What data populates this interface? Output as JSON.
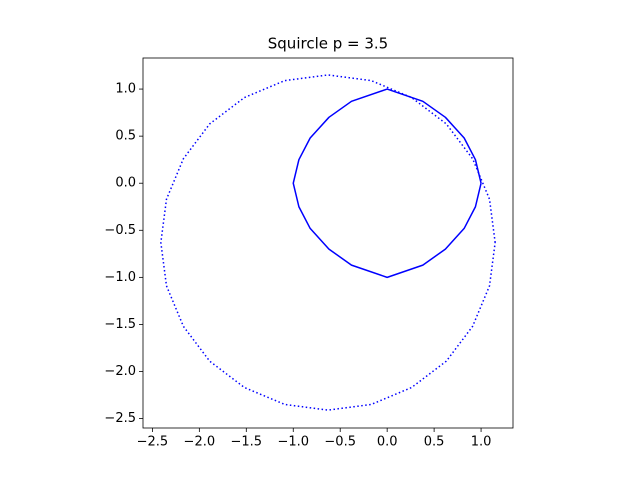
{
  "chart_data": {
    "type": "line",
    "title": "Squircle p = 3.5",
    "xlim": [
      -2.6,
      1.34
    ],
    "ylim": [
      -2.6,
      1.33
    ],
    "xticks": [
      {
        "value": -2.5,
        "label": "−2.5"
      },
      {
        "value": -2.0,
        "label": "−2.0"
      },
      {
        "value": -1.5,
        "label": "−1.5"
      },
      {
        "value": -1.0,
        "label": "−1.0"
      },
      {
        "value": -0.5,
        "label": "−0.5"
      },
      {
        "value": 0,
        "label": "0.0"
      },
      {
        "value": 0.5,
        "label": "0.5"
      },
      {
        "value": 1.0,
        "label": "1.0"
      }
    ],
    "yticks": [
      {
        "value": -2.5,
        "label": "−2.5"
      },
      {
        "value": -2.0,
        "label": "−2.0"
      },
      {
        "value": -1.5,
        "label": "−1.5"
      },
      {
        "value": -1.0,
        "label": "−1.0"
      },
      {
        "value": -0.5,
        "label": "−0.5"
      },
      {
        "value": 0,
        "label": "0.0"
      },
      {
        "value": 0.5,
        "label": "0.5"
      },
      {
        "value": 1.0,
        "label": "1.0"
      }
    ],
    "series": [
      {
        "color": "#0000ff",
        "linestyle": "solid",
        "x": [
          1,
          0.94,
          0.82,
          0.62,
          0.38,
          0,
          -0.38,
          -0.62,
          -0.82,
          -0.94,
          -1,
          -0.94,
          -0.82,
          -0.62,
          -0.38,
          0,
          0.38,
          0.62,
          0.82,
          0.94,
          1
        ],
        "values": [
          0,
          0.25,
          0.48,
          0.7,
          0.87,
          1,
          0.87,
          0.7,
          0.48,
          0.25,
          0,
          -0.25,
          -0.48,
          -0.7,
          -0.87,
          -1,
          -0.87,
          -0.7,
          -0.48,
          -0.25,
          0
        ]
      },
      {
        "color": "#0000ff",
        "linestyle": "dotted",
        "x": [
          1.15,
          1.09,
          0.91,
          0.63,
          0.26,
          -0.17,
          -0.63,
          -1.09,
          -1.52,
          -1.89,
          -2.17,
          -2.35,
          -2.41,
          -2.35,
          -2.17,
          -1.89,
          -1.52,
          -1.09,
          -0.63,
          -0.17,
          0.26,
          0.63,
          0.91,
          1.09,
          1.15
        ],
        "values": [
          -0.63,
          -0.17,
          0.26,
          0.63,
          0.91,
          1.09,
          1.15,
          1.09,
          0.91,
          0.63,
          0.26,
          -0.17,
          -0.63,
          -1.09,
          -1.52,
          -1.89,
          -2.17,
          -2.35,
          -2.41,
          -2.35,
          -2.17,
          -1.89,
          -1.52,
          -1.09,
          -0.63
        ]
      }
    ]
  }
}
